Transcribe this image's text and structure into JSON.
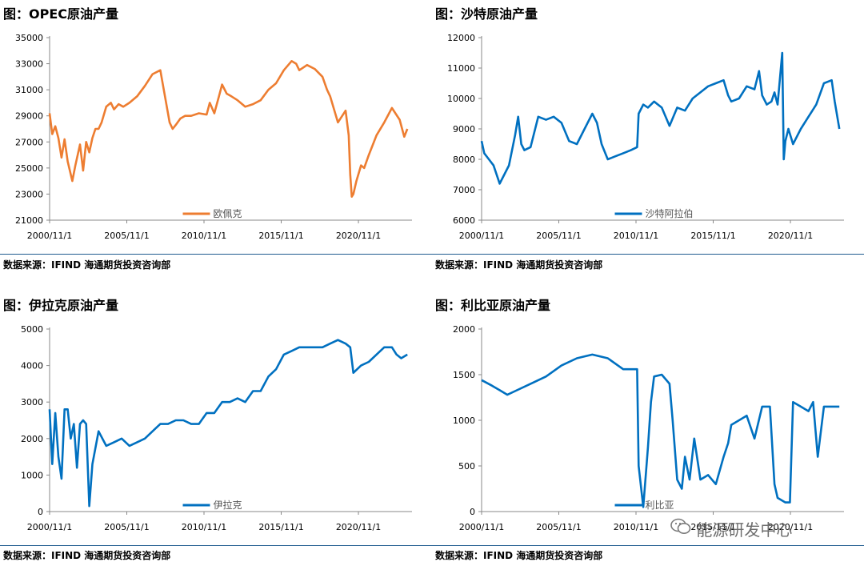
{
  "colors": {
    "orange": "#ED7D31",
    "blue": "#0070C0",
    "rule": "#1f5b8f"
  },
  "watermark": {
    "icon": "wechat-icon",
    "text": "能源研发中心"
  },
  "charts": [
    {
      "title": "图：OPEC原油产量",
      "source": "数据来源：IFIND   海通期货投资咨询部",
      "chart_data": {
        "type": "line",
        "title": "图：OPEC原油产量",
        "color": "#ED7D31",
        "ylim": [
          21000,
          35000
        ],
        "yticks": [
          "35000",
          "33000",
          "31000",
          "29000",
          "27000",
          "25000",
          "23000",
          "21000"
        ],
        "yticks_values": [
          35000,
          33000,
          31000,
          29000,
          27000,
          25000,
          23000,
          21000
        ],
        "xlim": [
          2000.83,
          2024.3
        ],
        "xticks": [
          "2000/11/1",
          "2005/11/1",
          "2010/11/1",
          "2015/11/1",
          "2020/11/1"
        ],
        "xticks_values": [
          2000.83,
          2005.83,
          2010.83,
          2015.83,
          2020.83
        ],
        "legend": "top-bottom-center",
        "series": [
          {
            "name": "欧佩克",
            "x": [
              2000.83,
              2001.0,
              2001.2,
              2001.4,
              2001.6,
              2001.8,
              2002.0,
              2002.3,
              2002.5,
              2002.8,
              2003.0,
              2003.2,
              2003.4,
              2003.6,
              2003.8,
              2004.0,
              2004.2,
              2004.5,
              2004.8,
              2005.0,
              2005.3,
              2005.6,
              2006.0,
              2006.5,
              2007.0,
              2007.5,
              2008.0,
              2008.3,
              2008.6,
              2008.8,
              2009.0,
              2009.3,
              2009.6,
              2010.0,
              2010.5,
              2011.0,
              2011.2,
              2011.5,
              2011.8,
              2012.0,
              2012.3,
              2012.6,
              2013.0,
              2013.5,
              2014.0,
              2014.5,
              2015.0,
              2015.5,
              2016.0,
              2016.5,
              2016.8,
              2017.0,
              2017.5,
              2018.0,
              2018.5,
              2018.8,
              2019.0,
              2019.5,
              2020.0,
              2020.2,
              2020.3,
              2020.4,
              2020.5,
              2020.7,
              2021.0,
              2021.2,
              2021.5,
              2022.0,
              2022.5,
              2023.0,
              2023.5,
              2023.8,
              2024.0
            ],
            "y": [
              29200,
              27600,
              28200,
              27300,
              25800,
              27200,
              25500,
              24000,
              25200,
              26800,
              24800,
              27000,
              26200,
              27300,
              28000,
              28000,
              28500,
              29700,
              30000,
              29500,
              29900,
              29700,
              30000,
              30500,
              31300,
              32200,
              32500,
              30500,
              28500,
              28000,
              28300,
              28800,
              29000,
              29000,
              29200,
              29100,
              30000,
              29200,
              30500,
              31400,
              30700,
              30500,
              30200,
              29700,
              29900,
              30200,
              31000,
              31500,
              32500,
              33200,
              33000,
              32500,
              32900,
              32600,
              32000,
              31000,
              30500,
              28500,
              29400,
              27500,
              24500,
              22800,
              23000,
              24000,
              25200,
              25000,
              26000,
              27500,
              28500,
              29600,
              28700,
              27400,
              28000
            ]
          }
        ]
      }
    },
    {
      "title": "图：沙特原油产量",
      "source": "数据来源：IFIND   海通期货投资咨询部",
      "chart_data": {
        "type": "line",
        "title": "图：沙特原油产量",
        "color": "#0070C0",
        "ylim": [
          6000,
          12000
        ],
        "yticks": [
          "12000",
          "11000",
          "10000",
          "9000",
          "8000",
          "7000",
          "6000"
        ],
        "yticks_values": [
          12000,
          11000,
          10000,
          9000,
          8000,
          7000,
          6000
        ],
        "xlim": [
          2000.83,
          2024.3
        ],
        "xticks": [
          "2000/11/1",
          "2005/11/1",
          "2010/11/1",
          "2015/11/1",
          "2020/11/1"
        ],
        "xticks_values": [
          2000.83,
          2005.83,
          2010.83,
          2015.83,
          2020.83
        ],
        "legend": "top-bottom-center",
        "series": [
          {
            "name": "沙特阿拉伯",
            "x": [
              2000.83,
              2001.0,
              2001.3,
              2001.6,
              2002.0,
              2002.3,
              2002.6,
              2003.0,
              2003.2,
              2003.4,
              2003.6,
              2004.0,
              2004.5,
              2005.0,
              2005.5,
              2006.0,
              2006.5,
              2007.0,
              2007.5,
              2008.0,
              2008.3,
              2008.6,
              2009.0,
              2009.5,
              2010.0,
              2010.5,
              2010.9,
              2011.0,
              2011.3,
              2011.6,
              2012.0,
              2012.5,
              2013.0,
              2013.5,
              2014.0,
              2014.5,
              2015.0,
              2015.5,
              2016.0,
              2016.5,
              2016.8,
              2017.0,
              2017.5,
              2018.0,
              2018.5,
              2018.8,
              2019.0,
              2019.3,
              2019.6,
              2019.8,
              2020.0,
              2020.3,
              2020.4,
              2020.5,
              2020.7,
              2021.0,
              2021.5,
              2022.0,
              2022.5,
              2023.0,
              2023.5,
              2023.7,
              2024.0
            ],
            "y": [
              8600,
              8200,
              8000,
              7800,
              7200,
              7500,
              7800,
              8800,
              9400,
              8500,
              8300,
              8400,
              9400,
              9300,
              9400,
              9200,
              8600,
              8500,
              9000,
              9500,
              9200,
              8500,
              8000,
              8100,
              8200,
              8300,
              8400,
              9500,
              9800,
              9700,
              9900,
              9700,
              9100,
              9700,
              9600,
              10000,
              10200,
              10400,
              10500,
              10600,
              10100,
              9900,
              10000,
              10400,
              10300,
              10900,
              10100,
              9800,
              9900,
              10200,
              9800,
              11500,
              8000,
              8600,
              9000,
              8500,
              9000,
              9400,
              9800,
              10500,
              10600,
              9900,
              9000
            ]
          }
        ]
      }
    },
    {
      "title": "图：伊拉克原油产量",
      "source": "数据来源：IFIND   海通期货投资咨询部",
      "chart_data": {
        "type": "line",
        "title": "图：伊拉克原油产量",
        "color": "#0070C0",
        "ylim": [
          0,
          5000
        ],
        "yticks": [
          "5000",
          "4000",
          "3000",
          "2000",
          "1000",
          "0"
        ],
        "yticks_values": [
          5000,
          4000,
          3000,
          2000,
          1000,
          0
        ],
        "xlim": [
          2000.83,
          2024.3
        ],
        "xticks": [
          "2000/11/1",
          "2005/11/1",
          "2010/11/1",
          "2015/11/1",
          "2020/11/1"
        ],
        "xticks_values": [
          2000.83,
          2005.83,
          2010.83,
          2015.83,
          2020.83
        ],
        "legend": "top-bottom-center",
        "series": [
          {
            "name": "伊拉克",
            "x": [
              2000.83,
              2001.0,
              2001.2,
              2001.4,
              2001.6,
              2001.8,
              2002.0,
              2002.2,
              2002.4,
              2002.6,
              2002.8,
              2003.0,
              2003.2,
              2003.4,
              2003.6,
              2004.0,
              2004.5,
              2005.0,
              2005.5,
              2006.0,
              2006.5,
              2007.0,
              2007.5,
              2008.0,
              2008.5,
              2009.0,
              2009.5,
              2010.0,
              2010.5,
              2011.0,
              2011.5,
              2012.0,
              2012.5,
              2013.0,
              2013.5,
              2014.0,
              2014.5,
              2015.0,
              2015.5,
              2016.0,
              2016.5,
              2017.0,
              2017.5,
              2018.0,
              2018.5,
              2019.0,
              2019.5,
              2020.0,
              2020.3,
              2020.5,
              2021.0,
              2021.5,
              2022.0,
              2022.5,
              2023.0,
              2023.3,
              2023.6,
              2024.0
            ],
            "y": [
              2800,
              1300,
              2700,
              1500,
              900,
              2800,
              2800,
              2000,
              2400,
              1200,
              2400,
              2500,
              2400,
              150,
              1300,
              2200,
              1800,
              1900,
              2000,
              1800,
              1900,
              2000,
              2200,
              2400,
              2400,
              2500,
              2500,
              2400,
              2400,
              2700,
              2700,
              3000,
              3000,
              3100,
              3000,
              3300,
              3300,
              3700,
              3900,
              4300,
              4400,
              4500,
              4500,
              4500,
              4500,
              4600,
              4700,
              4600,
              4500,
              3800,
              4000,
              4100,
              4300,
              4500,
              4500,
              4300,
              4200,
              4300
            ]
          }
        ]
      }
    },
    {
      "title": "图：利比亚原油产量",
      "source": "数据来源：IFIND   海通期货投资咨询部",
      "chart_data": {
        "type": "line",
        "title": "图：利比亚原油产量",
        "color": "#0070C0",
        "ylim": [
          0,
          2000
        ],
        "yticks": [
          "2000",
          "1500",
          "1000",
          "500",
          "0"
        ],
        "yticks_values": [
          2000,
          1500,
          1000,
          500,
          0
        ],
        "xlim": [
          2000.83,
          2024.3
        ],
        "xticks": [
          "2000/11/1",
          "2005/11/1",
          "2010/11/1",
          "2015/11/1",
          "2020/11/1"
        ],
        "xticks_values": [
          2000.83,
          2005.83,
          2010.83,
          2015.83,
          2020.83
        ],
        "legend": "top-bottom-center",
        "series": [
          {
            "name": "利比亚",
            "x": [
              2000.83,
              2001.5,
              2002.0,
              2002.5,
              2003.0,
              2004.0,
              2005.0,
              2006.0,
              2007.0,
              2008.0,
              2009.0,
              2010.0,
              2010.9,
              2011.0,
              2011.3,
              2011.6,
              2011.8,
              2012.0,
              2012.5,
              2013.0,
              2013.2,
              2013.5,
              2013.8,
              2014.0,
              2014.3,
              2014.6,
              2015.0,
              2015.5,
              2016.0,
              2016.5,
              2016.8,
              2017.0,
              2017.5,
              2018.0,
              2018.5,
              2019.0,
              2019.5,
              2019.8,
              2020.0,
              2020.5,
              2020.8,
              2021.0,
              2021.5,
              2022.0,
              2022.3,
              2022.6,
              2023.0,
              2023.5,
              2024.0
            ],
            "y": [
              1440,
              1380,
              1330,
              1280,
              1320,
              1400,
              1480,
              1600,
              1680,
              1720,
              1680,
              1560,
              1560,
              500,
              50,
              700,
              1200,
              1480,
              1500,
              1400,
              1000,
              350,
              250,
              600,
              350,
              800,
              350,
              400,
              300,
              600,
              750,
              950,
              1000,
              1050,
              800,
              1150,
              1150,
              300,
              150,
              100,
              100,
              1200,
              1150,
              1100,
              1200,
              600,
              1150,
              1150,
              1150
            ]
          }
        ]
      }
    }
  ]
}
